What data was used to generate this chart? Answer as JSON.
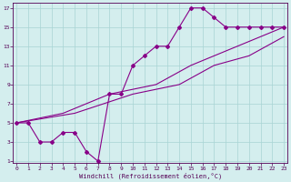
{
  "bg_color": "#d4eeee",
  "grid_color": "#a8d4d4",
  "line_color": "#880088",
  "xlabel": "Windchill (Refroidissement éolien,°C)",
  "xlim": [
    -0.3,
    23.3
  ],
  "ylim": [
    0.8,
    17.5
  ],
  "xticks": [
    0,
    1,
    2,
    3,
    4,
    5,
    6,
    7,
    8,
    9,
    10,
    11,
    12,
    13,
    14,
    15,
    16,
    17,
    18,
    19,
    20,
    21,
    22,
    23
  ],
  "yticks": [
    1,
    3,
    5,
    7,
    9,
    11,
    13,
    15,
    17
  ],
  "curve_x": [
    0,
    1,
    2,
    3,
    4,
    5,
    6,
    7,
    8,
    9,
    10,
    11,
    12,
    13,
    14,
    15,
    16,
    17,
    18,
    19,
    20,
    21,
    22,
    23
  ],
  "curve_y": [
    5,
    5,
    3,
    3,
    4,
    4,
    2,
    1,
    8,
    8,
    11,
    12,
    13,
    13,
    15,
    17,
    17,
    16,
    15,
    15,
    15,
    15,
    15,
    15
  ],
  "diag1_x": [
    0,
    4,
    8,
    12,
    15,
    17,
    19,
    21,
    23
  ],
  "diag1_y": [
    5,
    6,
    8,
    9,
    11,
    12,
    13,
    14,
    15
  ],
  "diag2_x": [
    0,
    5,
    10,
    14,
    17,
    20,
    23
  ],
  "diag2_y": [
    5,
    6,
    8,
    9,
    11,
    12,
    14
  ]
}
